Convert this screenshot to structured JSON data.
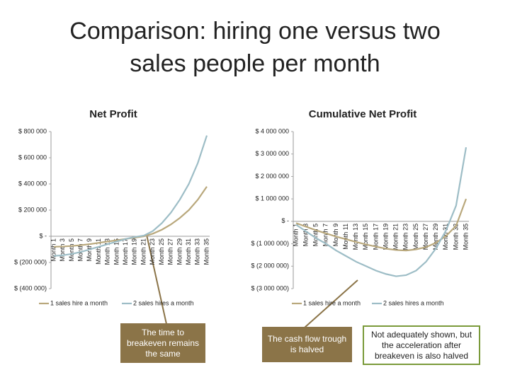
{
  "title": "Comparison: hiring one versus two sales people per month",
  "annotations": [
    "The time to breakeven remains the same",
    "The cash flow trough is halved",
    "Not adequately shown, but the acceleration after breakeven is also halved"
  ],
  "chart_data": [
    {
      "type": "line",
      "title": "Net Profit",
      "categories": [
        "Month 1",
        "Month 3",
        "Month 5",
        "Month 7",
        "Month 9",
        "Month 11",
        "Month 13",
        "Month 15",
        "Month 17",
        "Month 19",
        "Month 21",
        "Month 23",
        "Month 25",
        "Month 27",
        "Month 29",
        "Month 31",
        "Month 33",
        "Month 35"
      ],
      "series": [
        {
          "name": "1 sales hire a month",
          "color": "#b9a87c",
          "values": [
            -80000,
            -78000,
            -74000,
            -68000,
            -60000,
            -50000,
            -40000,
            -30000,
            -20000,
            -10000,
            0,
            20000,
            50000,
            90000,
            140000,
            200000,
            280000,
            380000
          ]
        },
        {
          "name": "2 sales hires a month",
          "color": "#9dbdc6",
          "values": [
            -150000,
            -145000,
            -135000,
            -120000,
            -100000,
            -80000,
            -60000,
            -40000,
            -20000,
            -5000,
            5000,
            40000,
            100000,
            180000,
            280000,
            400000,
            560000,
            770000
          ]
        }
      ],
      "ylim": [
        -400000,
        800000
      ],
      "yticks": [
        {
          "value": -400000,
          "label": "$ (400 000)"
        },
        {
          "value": -200000,
          "label": "$ (200 000)"
        },
        {
          "value": 0,
          "label": "$ -"
        },
        {
          "value": 200000,
          "label": "$ 200 000"
        },
        {
          "value": 400000,
          "label": "$ 400 000"
        },
        {
          "value": 600000,
          "label": "$ 600 000"
        },
        {
          "value": 800000,
          "label": "$ 800 000"
        }
      ],
      "legend": "bottom"
    },
    {
      "type": "line",
      "title": "Cumulative Net Profit",
      "categories": [
        "Month 1",
        "Month 3",
        "Month 5",
        "Month 7",
        "Month 9",
        "Month 11",
        "Month 13",
        "Month 15",
        "Month 17",
        "Month 19",
        "Month 21",
        "Month 23",
        "Month 25",
        "Month 27",
        "Month 29",
        "Month 31",
        "Month 33",
        "Month 35"
      ],
      "series": [
        {
          "name": "1 sales hire a month",
          "color": "#b9a87c",
          "values": [
            -80000,
            -240000,
            -400000,
            -540000,
            -680000,
            -800000,
            -920000,
            -1030000,
            -1130000,
            -1220000,
            -1280000,
            -1300000,
            -1250000,
            -1150000,
            -950000,
            -650000,
            -200000,
            1000000
          ]
        },
        {
          "name": "2 sales hires a month",
          "color": "#9dbdc6",
          "values": [
            -150000,
            -450000,
            -750000,
            -1000000,
            -1300000,
            -1550000,
            -1800000,
            -2000000,
            -2200000,
            -2350000,
            -2450000,
            -2400000,
            -2200000,
            -1800000,
            -1200000,
            -400000,
            700000,
            3300000
          ]
        }
      ],
      "ylim": [
        -3000000,
        4000000
      ],
      "yticks": [
        {
          "value": -3000000,
          "label": "$ (3 000 000)"
        },
        {
          "value": -2000000,
          "label": "$ (2 000 000)"
        },
        {
          "value": -1000000,
          "label": "$ (1 000 000)"
        },
        {
          "value": 0,
          "label": "$ -"
        },
        {
          "value": 1000000,
          "label": "$ 1 000 000"
        },
        {
          "value": 2000000,
          "label": "$ 2 000 000"
        },
        {
          "value": 3000000,
          "label": "$ 3 000 000"
        },
        {
          "value": 4000000,
          "label": "$ 4 000 000"
        }
      ],
      "legend": "bottom"
    }
  ]
}
